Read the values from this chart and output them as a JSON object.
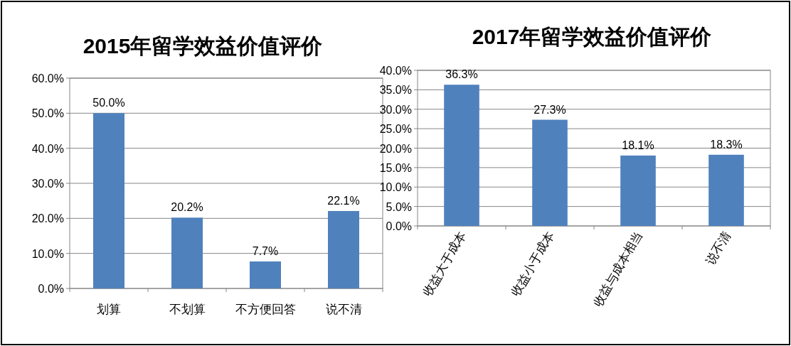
{
  "chart_data": [
    {
      "type": "bar",
      "title": "2015年留学效益价值评价",
      "categories": [
        "划算",
        "不划算",
        "不方便回答",
        "说不清"
      ],
      "series": [
        {
          "color": "#4f81bd",
          "values": [
            50.0,
            20.2,
            7.7,
            22.1
          ],
          "value_labels": [
            "50.0%",
            "20.2%",
            "7.7%",
            "22.1%"
          ]
        }
      ],
      "ylim": [
        0,
        60
      ],
      "yticks": [
        {
          "value": 0,
          "label": "0.0%"
        },
        {
          "value": 10,
          "label": "10.0%"
        },
        {
          "value": 20,
          "label": "20.0%"
        },
        {
          "value": 30,
          "label": "30.0%"
        },
        {
          "value": 40,
          "label": "40.0%"
        },
        {
          "value": 50,
          "label": "50.0%"
        },
        {
          "value": 60,
          "label": "60.0%"
        }
      ],
      "grid": "y"
    },
    {
      "type": "bar",
      "title": "2017年留学效益价值评价",
      "categories": [
        "收益大于成本",
        "收益小于成本",
        "收益与成本相当",
        "说不清"
      ],
      "series": [
        {
          "color": "#4f81bd",
          "values": [
            36.3,
            27.3,
            18.1,
            18.3
          ],
          "value_labels": [
            "36.3%",
            "27.3%",
            "18.1%",
            "18.3%"
          ]
        }
      ],
      "ylim": [
        0,
        40
      ],
      "yticks": [
        {
          "value": 0,
          "label": "0.0%"
        },
        {
          "value": 5,
          "label": "5.0%"
        },
        {
          "value": 10,
          "label": "10.0%"
        },
        {
          "value": 15,
          "label": "15.0%"
        },
        {
          "value": 20,
          "label": "20.0%"
        },
        {
          "value": 25,
          "label": "25.0%"
        },
        {
          "value": 30,
          "label": "30.0%"
        },
        {
          "value": 35,
          "label": "35.0%"
        },
        {
          "value": 40,
          "label": "40.0%"
        }
      ],
      "grid": "y"
    }
  ]
}
